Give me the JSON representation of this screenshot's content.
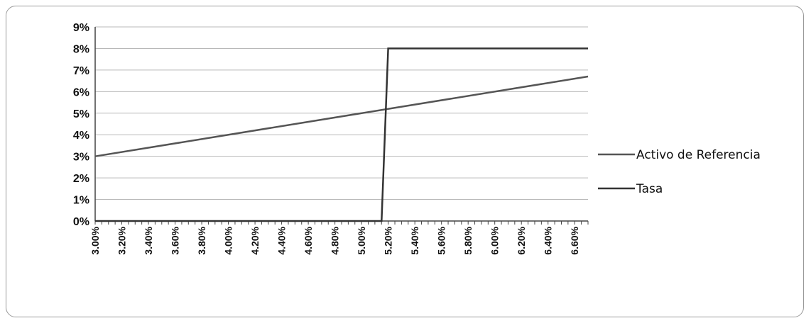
{
  "chart_data": {
    "type": "line",
    "title": "",
    "xlabel": "",
    "ylabel": "",
    "x_range": [
      3.0,
      6.7
    ],
    "ylim": [
      0,
      9
    ],
    "y_ticks": [
      "0%",
      "1%",
      "2%",
      "3%",
      "4%",
      "5%",
      "6%",
      "7%",
      "8%",
      "9%"
    ],
    "x_tick_labels": [
      "3.00%",
      "3.20%",
      "3.40%",
      "3.60%",
      "3.80%",
      "4.00%",
      "4.20%",
      "4.40%",
      "4.60%",
      "4.80%",
      "5.00%",
      "5.20%",
      "5.40%",
      "5.60%",
      "5.80%",
      "6.00%",
      "6.20%",
      "6.40%",
      "6.60%"
    ],
    "grid": true,
    "legend_position": "right",
    "series": [
      {
        "name": "Activo de Referencia",
        "color": "#555555",
        "points": [
          [
            3.0,
            3.0
          ],
          [
            6.7,
            6.7
          ]
        ]
      },
      {
        "name": "Tasa",
        "color": "#333333",
        "points": [
          [
            3.0,
            0.0
          ],
          [
            5.15,
            0.0
          ],
          [
            5.2,
            8.0
          ],
          [
            6.7,
            8.0
          ]
        ]
      }
    ]
  }
}
